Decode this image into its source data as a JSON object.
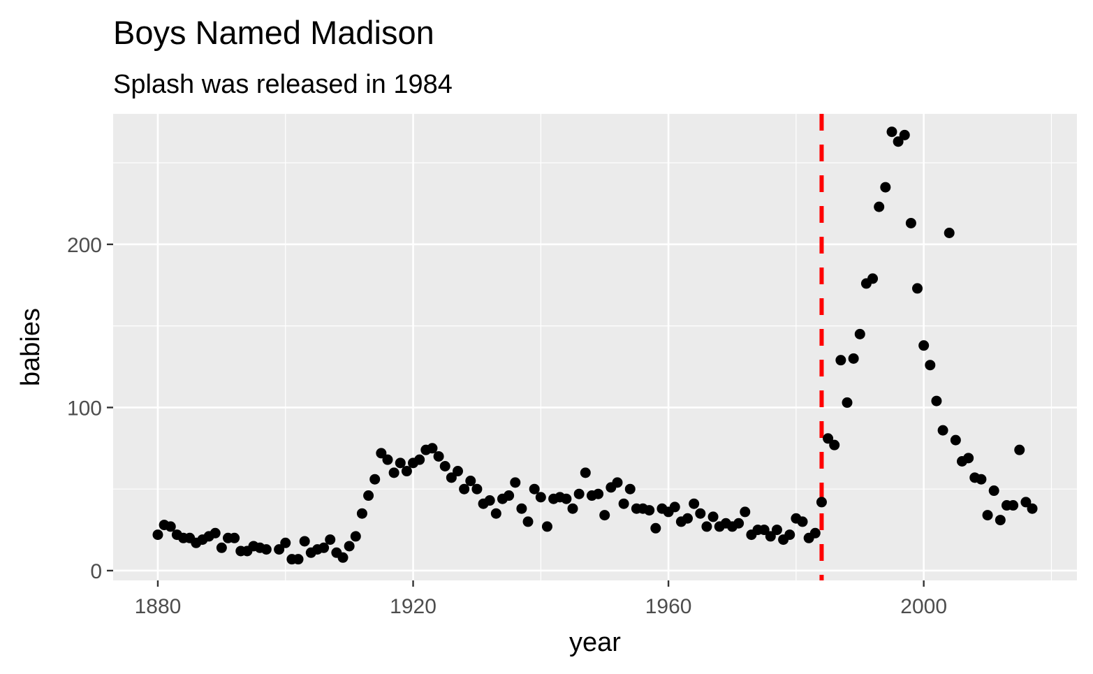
{
  "chart_data": {
    "type": "scatter",
    "title": "Boys Named Madison",
    "subtitle": "Splash was released in 1984",
    "xlabel": "year",
    "ylabel": "babies",
    "xlim": [
      1873,
      2024
    ],
    "ylim": [
      -6,
      280
    ],
    "x_ticks": [
      1880,
      1920,
      1960,
      2000
    ],
    "x_tick_labels": [
      "1880",
      "1920",
      "1960",
      "2000"
    ],
    "y_ticks": [
      0,
      100,
      200
    ],
    "y_tick_labels": [
      "0",
      "100",
      "200"
    ],
    "x_minor_breaks": [
      1900,
      1940,
      1980,
      2020
    ],
    "y_minor_breaks": [
      50,
      150,
      250
    ],
    "grid": true,
    "panel_background": "#ebebeb",
    "grid_color": "#ffffff",
    "point_color": "#000000",
    "reference_line": {
      "x": 1984,
      "color": "#ff0000",
      "style": "dashed"
    },
    "points": [
      [
        1880,
        22
      ],
      [
        1881,
        28
      ],
      [
        1882,
        27
      ],
      [
        1883,
        22
      ],
      [
        1884,
        20
      ],
      [
        1885,
        20
      ],
      [
        1886,
        17
      ],
      [
        1887,
        19
      ],
      [
        1888,
        21
      ],
      [
        1889,
        23
      ],
      [
        1890,
        14
      ],
      [
        1891,
        20
      ],
      [
        1892,
        20
      ],
      [
        1893,
        12
      ],
      [
        1894,
        12
      ],
      [
        1895,
        15
      ],
      [
        1896,
        14
      ],
      [
        1897,
        13
      ],
      [
        1899,
        13
      ],
      [
        1900,
        17
      ],
      [
        1901,
        7
      ],
      [
        1902,
        7
      ],
      [
        1903,
        18
      ],
      [
        1904,
        11
      ],
      [
        1905,
        13
      ],
      [
        1906,
        14
      ],
      [
        1907,
        19
      ],
      [
        1908,
        11
      ],
      [
        1909,
        8
      ],
      [
        1910,
        15
      ],
      [
        1911,
        21
      ],
      [
        1912,
        35
      ],
      [
        1913,
        46
      ],
      [
        1914,
        56
      ],
      [
        1915,
        72
      ],
      [
        1916,
        68
      ],
      [
        1917,
        60
      ],
      [
        1918,
        66
      ],
      [
        1919,
        61
      ],
      [
        1920,
        66
      ],
      [
        1921,
        68
      ],
      [
        1922,
        74
      ],
      [
        1923,
        75
      ],
      [
        1924,
        70
      ],
      [
        1925,
        64
      ],
      [
        1926,
        57
      ],
      [
        1927,
        61
      ],
      [
        1928,
        50
      ],
      [
        1929,
        55
      ],
      [
        1930,
        50
      ],
      [
        1931,
        41
      ],
      [
        1932,
        43
      ],
      [
        1933,
        35
      ],
      [
        1934,
        44
      ],
      [
        1935,
        46
      ],
      [
        1936,
        54
      ],
      [
        1937,
        38
      ],
      [
        1938,
        30
      ],
      [
        1939,
        50
      ],
      [
        1940,
        45
      ],
      [
        1941,
        27
      ],
      [
        1942,
        44
      ],
      [
        1943,
        45
      ],
      [
        1944,
        44
      ],
      [
        1945,
        38
      ],
      [
        1946,
        47
      ],
      [
        1947,
        60
      ],
      [
        1948,
        46
      ],
      [
        1949,
        47
      ],
      [
        1950,
        34
      ],
      [
        1951,
        51
      ],
      [
        1952,
        54
      ],
      [
        1953,
        41
      ],
      [
        1954,
        50
      ],
      [
        1955,
        38
      ],
      [
        1956,
        38
      ],
      [
        1957,
        37
      ],
      [
        1958,
        26
      ],
      [
        1959,
        38
      ],
      [
        1960,
        36
      ],
      [
        1961,
        39
      ],
      [
        1962,
        30
      ],
      [
        1963,
        32
      ],
      [
        1964,
        41
      ],
      [
        1965,
        35
      ],
      [
        1966,
        27
      ],
      [
        1967,
        33
      ],
      [
        1968,
        27
      ],
      [
        1969,
        29
      ],
      [
        1970,
        27
      ],
      [
        1971,
        29
      ],
      [
        1972,
        36
      ],
      [
        1973,
        22
      ],
      [
        1974,
        25
      ],
      [
        1975,
        25
      ],
      [
        1976,
        21
      ],
      [
        1977,
        25
      ],
      [
        1978,
        19
      ],
      [
        1979,
        22
      ],
      [
        1980,
        32
      ],
      [
        1981,
        30
      ],
      [
        1982,
        20
      ],
      [
        1983,
        23
      ],
      [
        1984,
        42
      ],
      [
        1985,
        81
      ],
      [
        1986,
        77
      ],
      [
        1987,
        129
      ],
      [
        1988,
        103
      ],
      [
        1989,
        130
      ],
      [
        1990,
        145
      ],
      [
        1991,
        176
      ],
      [
        1992,
        179
      ],
      [
        1993,
        223
      ],
      [
        1994,
        235
      ],
      [
        1995,
        269
      ],
      [
        1996,
        263
      ],
      [
        1997,
        267
      ],
      [
        1998,
        213
      ],
      [
        1999,
        173
      ],
      [
        2000,
        138
      ],
      [
        2001,
        126
      ],
      [
        2002,
        104
      ],
      [
        2003,
        86
      ],
      [
        2004,
        207
      ],
      [
        2005,
        80
      ],
      [
        2006,
        67
      ],
      [
        2007,
        69
      ],
      [
        2008,
        57
      ],
      [
        2009,
        56
      ],
      [
        2010,
        34
      ],
      [
        2011,
        49
      ],
      [
        2012,
        31
      ],
      [
        2013,
        40
      ],
      [
        2014,
        40
      ],
      [
        2015,
        74
      ],
      [
        2016,
        42
      ],
      [
        2017,
        38
      ]
    ]
  }
}
